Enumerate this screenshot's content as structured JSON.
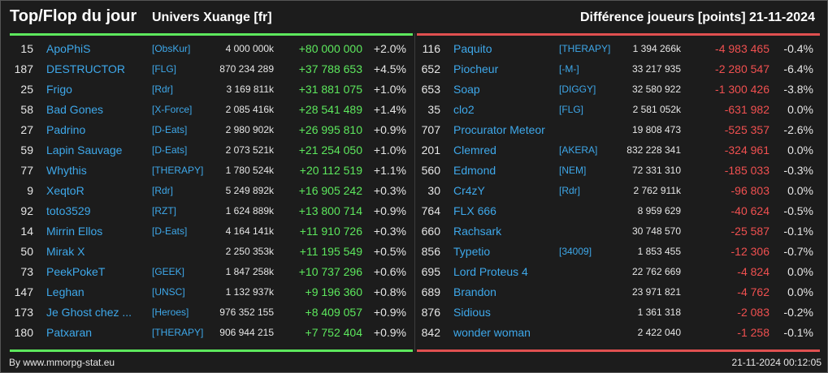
{
  "header": {
    "title": "Top/Flop du jour",
    "universe": "Univers Xuange [fr]",
    "metric": "Différence joueurs [points]",
    "date": "21-11-2024"
  },
  "colors": {
    "positive": "#5de85d",
    "negative": "#f05050",
    "link": "#3ea8ea"
  },
  "top": [
    {
      "rank": "15",
      "name": "ApoPhiS",
      "alliance": "[ObsKur]",
      "score": "4 000 000k",
      "diff": "+80 000 000",
      "pct": "+2.0%"
    },
    {
      "rank": "187",
      "name": "DESTRUCTOR",
      "alliance": "[FLG]",
      "score": "870 234 289",
      "diff": "+37 788 653",
      "pct": "+4.5%"
    },
    {
      "rank": "25",
      "name": "Frigo",
      "alliance": "[Rdr]",
      "score": "3 169 811k",
      "diff": "+31 881 075",
      "pct": "+1.0%"
    },
    {
      "rank": "58",
      "name": "Bad Gones",
      "alliance": "[X-Force]",
      "score": "2 085 416k",
      "diff": "+28 541 489",
      "pct": "+1.4%"
    },
    {
      "rank": "27",
      "name": "Padrino",
      "alliance": "[D-Eats]",
      "score": "2 980 902k",
      "diff": "+26 995 810",
      "pct": "+0.9%"
    },
    {
      "rank": "59",
      "name": "Lapin Sauvage",
      "alliance": "[D-Eats]",
      "score": "2 073 521k",
      "diff": "+21 254 050",
      "pct": "+1.0%"
    },
    {
      "rank": "77",
      "name": "Whythis",
      "alliance": "[THERAPY]",
      "score": "1 780 524k",
      "diff": "+20 112 519",
      "pct": "+1.1%"
    },
    {
      "rank": "9",
      "name": "XeqtoR",
      "alliance": "[Rdr]",
      "score": "5 249 892k",
      "diff": "+16 905 242",
      "pct": "+0.3%"
    },
    {
      "rank": "92",
      "name": "toto3529",
      "alliance": "[RZT]",
      "score": "1 624 889k",
      "diff": "+13 800 714",
      "pct": "+0.9%"
    },
    {
      "rank": "14",
      "name": "Mirrin Ellos",
      "alliance": "[D-Eats]",
      "score": "4 164 141k",
      "diff": "+11 910 726",
      "pct": "+0.3%"
    },
    {
      "rank": "50",
      "name": "Mirak X",
      "alliance": "",
      "score": "2 250 353k",
      "diff": "+11 195 549",
      "pct": "+0.5%"
    },
    {
      "rank": "73",
      "name": "PeekPokeT",
      "alliance": "[GEEK]",
      "score": "1 847 258k",
      "diff": "+10 737 296",
      "pct": "+0.6%"
    },
    {
      "rank": "147",
      "name": "Leghan",
      "alliance": "[UNSC]",
      "score": "1 132 937k",
      "diff": "+9 196 360",
      "pct": "+0.8%"
    },
    {
      "rank": "173",
      "name": "Je Ghost chez ...",
      "alliance": "[Heroes]",
      "score": "976 352 155",
      "diff": "+8 409 057",
      "pct": "+0.9%"
    },
    {
      "rank": "180",
      "name": "Patxaran",
      "alliance": "[THERAPY]",
      "score": "906 944 215",
      "diff": "+7 752 404",
      "pct": "+0.9%"
    }
  ],
  "flop": [
    {
      "rank": "116",
      "name": "Paquito",
      "alliance": "[THERAPY]",
      "score": "1 394 266k",
      "diff": "-4 983 465",
      "pct": "-0.4%"
    },
    {
      "rank": "652",
      "name": "Piocheur",
      "alliance": "[-M-]",
      "score": "33 217 935",
      "diff": "-2 280 547",
      "pct": "-6.4%"
    },
    {
      "rank": "653",
      "name": "Soap",
      "alliance": "[DIGGY]",
      "score": "32 580 922",
      "diff": "-1 300 426",
      "pct": "-3.8%"
    },
    {
      "rank": "35",
      "name": "clo2",
      "alliance": "[FLG]",
      "score": "2 581 052k",
      "diff": "-631 982",
      "pct": "0.0%"
    },
    {
      "rank": "707",
      "name": "Procurator Meteor",
      "alliance": "",
      "score": "19 808 473",
      "diff": "-525 357",
      "pct": "-2.6%"
    },
    {
      "rank": "201",
      "name": "Clemred",
      "alliance": "[AKERA]",
      "score": "832 228 341",
      "diff": "-324 961",
      "pct": "0.0%"
    },
    {
      "rank": "560",
      "name": "Edmond",
      "alliance": "[NEM]",
      "score": "72 331 310",
      "diff": "-185 033",
      "pct": "-0.3%"
    },
    {
      "rank": "30",
      "name": "Cr4zY",
      "alliance": "[Rdr]",
      "score": "2 762 911k",
      "diff": "-96 803",
      "pct": "0.0%"
    },
    {
      "rank": "764",
      "name": "FLX 666",
      "alliance": "",
      "score": "8 959 629",
      "diff": "-40 624",
      "pct": "-0.5%"
    },
    {
      "rank": "660",
      "name": "Rachsark",
      "alliance": "",
      "score": "30 748 570",
      "diff": "-25 587",
      "pct": "-0.1%"
    },
    {
      "rank": "856",
      "name": "Typetio",
      "alliance": "[34009]",
      "score": "1 853 455",
      "diff": "-12 306",
      "pct": "-0.7%"
    },
    {
      "rank": "695",
      "name": "Lord Proteus 4",
      "alliance": "",
      "score": "22 762 669",
      "diff": "-4 824",
      "pct": "0.0%"
    },
    {
      "rank": "689",
      "name": "Brandon",
      "alliance": "",
      "score": "23 971 821",
      "diff": "-4 762",
      "pct": "0.0%"
    },
    {
      "rank": "876",
      "name": "Sidious",
      "alliance": "",
      "score": "1 361 318",
      "diff": "-2 083",
      "pct": "-0.2%"
    },
    {
      "rank": "842",
      "name": "wonder woman",
      "alliance": "",
      "score": "2 422 040",
      "diff": "-1 258",
      "pct": "-0.1%"
    }
  ],
  "footer": {
    "credit": "By www.mmorpg-stat.eu",
    "timestamp": "21-11-2024 00:12:05"
  }
}
